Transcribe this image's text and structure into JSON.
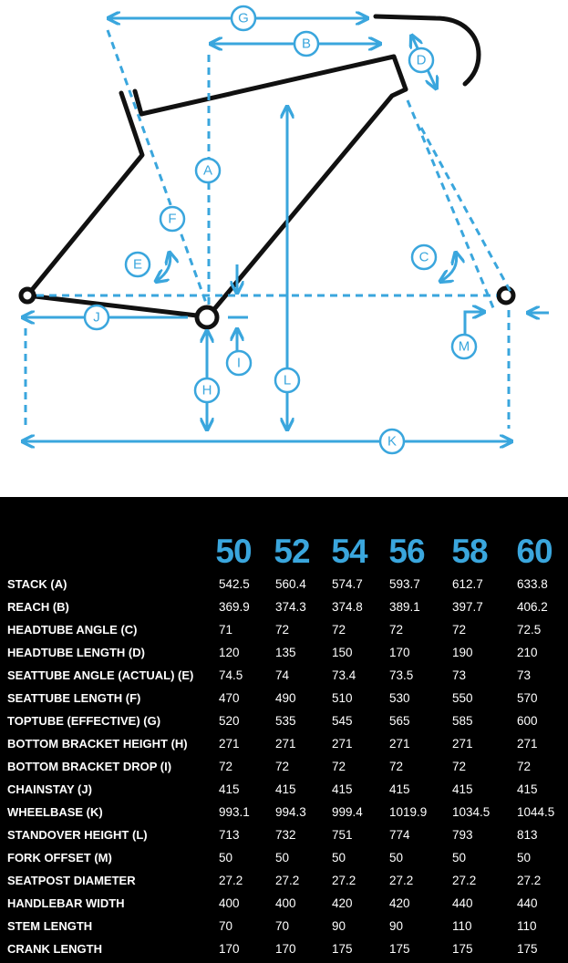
{
  "diagram": {
    "labels": {
      "A": "A",
      "B": "B",
      "C": "C",
      "D": "D",
      "E": "E",
      "F": "F",
      "G": "G",
      "H": "H",
      "I": "I",
      "J": "J",
      "K": "K",
      "L": "L",
      "M": "M"
    },
    "colors": {
      "frame": "#111111",
      "dimension": "#3aa6dd"
    }
  },
  "table": {
    "sizes": [
      "50",
      "52",
      "54",
      "56",
      "58",
      "60"
    ],
    "rows": [
      {
        "label": "STACK (A)",
        "values": [
          "542.5",
          "560.4",
          "574.7",
          "593.7",
          "612.7",
          "633.8"
        ]
      },
      {
        "label": "REACH (B)",
        "values": [
          "369.9",
          "374.3",
          "374.8",
          "389.1",
          "397.7",
          "406.2"
        ]
      },
      {
        "label": "HEADTUBE ANGLE (C)",
        "values": [
          "71",
          "72",
          "72",
          "72",
          "72",
          "72.5"
        ]
      },
      {
        "label": "HEADTUBE LENGTH (D)",
        "values": [
          "120",
          "135",
          "150",
          "170",
          "190",
          "210"
        ]
      },
      {
        "label": "SEATTUBE ANGLE (ACTUAL) (E)",
        "values": [
          "74.5",
          "74",
          "73.4",
          "73.5",
          "73",
          "73"
        ]
      },
      {
        "label": "SEATTUBE LENGTH (F)",
        "values": [
          "470",
          "490",
          "510",
          "530",
          "550",
          "570"
        ]
      },
      {
        "label": "TOPTUBE (EFFECTIVE) (G)",
        "values": [
          "520",
          "535",
          "545",
          "565",
          "585",
          "600"
        ]
      },
      {
        "label": "BOTTOM BRACKET HEIGHT (H)",
        "values": [
          "271",
          "271",
          "271",
          "271",
          "271",
          "271"
        ]
      },
      {
        "label": "BOTTOM BRACKET DROP (I)",
        "values": [
          "72",
          "72",
          "72",
          "72",
          "72",
          "72"
        ]
      },
      {
        "label": "CHAINSTAY (J)",
        "values": [
          "415",
          "415",
          "415",
          "415",
          "415",
          "415"
        ]
      },
      {
        "label": "WHEELBASE (K)",
        "values": [
          "993.1",
          "994.3",
          "999.4",
          "1019.9",
          "1034.5",
          "1044.5"
        ]
      },
      {
        "label": "STANDOVER HEIGHT (L)",
        "values": [
          "713",
          "732",
          "751",
          "774",
          "793",
          "813"
        ]
      },
      {
        "label": "FORK OFFSET (M)",
        "values": [
          "50",
          "50",
          "50",
          "50",
          "50",
          "50"
        ]
      },
      {
        "label": "SEATPOST DIAMETER",
        "values": [
          "27.2",
          "27.2",
          "27.2",
          "27.2",
          "27.2",
          "27.2"
        ]
      },
      {
        "label": "HANDLEBAR WIDTH",
        "values": [
          "400",
          "400",
          "420",
          "420",
          "440",
          "440"
        ]
      },
      {
        "label": "STEM LENGTH",
        "values": [
          "70",
          "70",
          "90",
          "90",
          "110",
          "110"
        ]
      },
      {
        "label": "CRANK LENGTH",
        "values": [
          "170",
          "170",
          "175",
          "175",
          "175",
          "175"
        ]
      }
    ]
  }
}
